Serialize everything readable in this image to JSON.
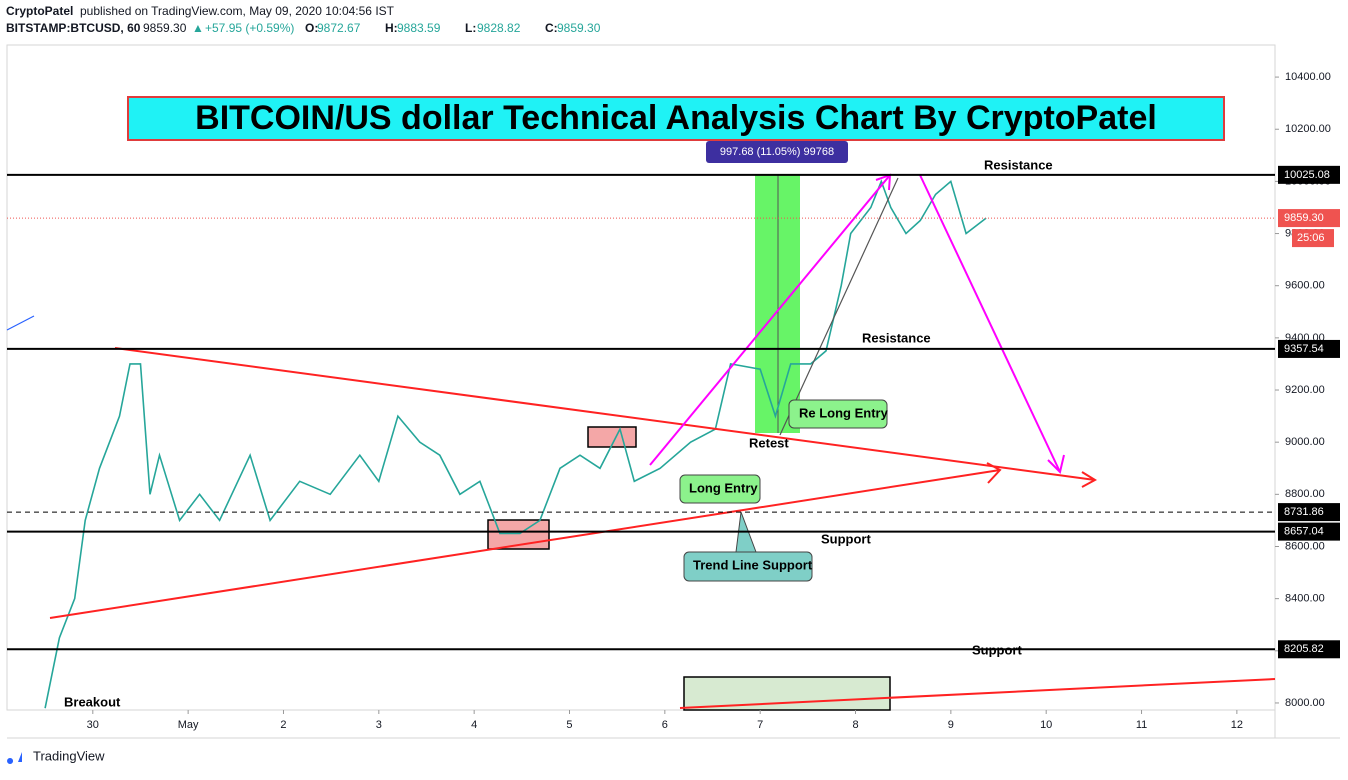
{
  "header": {
    "publisher": "CryptoPatel",
    "published": "published on TradingView.com, May 09, 2020 10:04:56 IST",
    "symbol": "BITSTAMP:BTCUSD, 60",
    "last": "9859.30",
    "change": "+57.95 (+0.59%)",
    "ohlc": [
      {
        "key": "O:",
        "value": "9872.67"
      },
      {
        "key": "H:",
        "value": "9883.59"
      },
      {
        "key": "L:",
        "value": "9828.82"
      },
      {
        "key": "C:",
        "value": "9859.30"
      }
    ]
  },
  "chart_data": {
    "type": "line",
    "title": "BITCOIN/US dollar Technical Analysis Chart By CryptoPatel",
    "x": [
      -0.5,
      -0.35,
      -0.19,
      -0.08,
      0.07,
      0.28,
      0.39,
      0.5,
      0.6,
      0.7,
      0.91,
      1.12,
      1.33,
      1.65,
      1.86,
      2.17,
      2.49,
      2.8,
      3.0,
      3.2,
      3.43,
      3.64,
      3.85,
      4.06,
      4.27,
      4.48,
      4.69,
      4.9,
      5.11,
      5.32,
      5.53,
      5.68,
      5.95,
      6.27,
      6.53,
      6.69,
      7.0,
      7.16,
      7.32,
      7.53,
      7.69,
      7.85,
      7.95,
      8.16,
      8.27,
      8.37,
      8.53,
      8.68,
      8.84,
      9.0,
      9.16,
      9.37
    ],
    "values": [
      7980,
      8250,
      8400,
      8700,
      8900,
      9100,
      9300,
      9300,
      8800,
      8950,
      8700,
      8800,
      8700,
      8950,
      8700,
      8850,
      8800,
      8950,
      8850,
      9100,
      9000,
      8950,
      8800,
      8850,
      8650,
      8650,
      8700,
      8900,
      8950,
      8900,
      9050,
      8850,
      8900,
      9000,
      9050,
      9300,
      9280,
      9100,
      9300,
      9300,
      9350,
      9600,
      9800,
      9900,
      10000,
      9900,
      9800,
      9850,
      9950,
      10000,
      9800,
      9859.3
    ],
    "color": "#26a69a",
    "xlim": [
      -0.9,
      12.4
    ],
    "ylim": [
      7973,
      10523
    ],
    "xticks": [
      {
        "value": 0,
        "label": "30"
      },
      {
        "value": 1,
        "label": "May"
      },
      2,
      3,
      4,
      5,
      6,
      7,
      8,
      9,
      10,
      11,
      12
    ],
    "yticks": [
      {
        "value": 8000,
        "label": "8000.00"
      },
      {
        "value": 8200,
        "label": "8200.00"
      },
      {
        "value": 8400,
        "label": "8400.00"
      },
      {
        "value": 8600,
        "label": "8600.00"
      },
      {
        "value": 8800,
        "label": "8800.00"
      },
      {
        "value": 9000,
        "label": "9000.00"
      },
      {
        "value": 9200,
        "label": "9200.00"
      },
      {
        "value": 9400,
        "label": "9400.00"
      },
      {
        "value": 9600,
        "label": "9600.00"
      },
      {
        "value": 9800,
        "label": "9800.00"
      },
      {
        "value": 10000,
        "label": "10000.00"
      },
      {
        "value": 10200,
        "label": "10200.00"
      },
      {
        "value": 10400,
        "label": "10400.00"
      }
    ],
    "levels": [
      {
        "value": 10025.08,
        "label": "10025.08",
        "style": "solid"
      },
      {
        "value": 9357.54,
        "label": "9357.54",
        "style": "solid"
      },
      {
        "value": 8731.86,
        "label": "8731.86",
        "style": "dashed"
      },
      {
        "value": 8657.04,
        "label": "8657.04",
        "style": "solid"
      },
      {
        "value": 8205.82,
        "label": "8205.82",
        "style": "solid"
      }
    ],
    "last_price": {
      "value": 9859.3,
      "label": "9859.30",
      "countdown": "25:06"
    },
    "measure": "997.68 (11.05%) 99768",
    "annotations": [
      "Resistance",
      "Resistance",
      "Support",
      "Support",
      "Breakout",
      "Retest",
      "Long Entry",
      "Re Long Entry",
      "Trend Line Support"
    ]
  },
  "footer": {
    "brand": "TradingView"
  }
}
